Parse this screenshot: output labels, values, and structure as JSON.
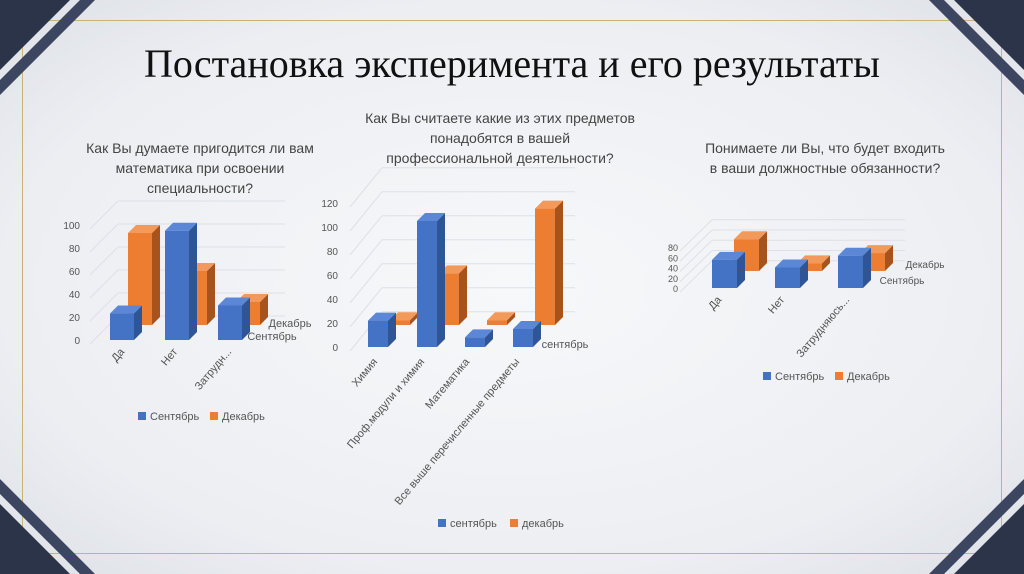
{
  "title": "Постановка эксперимента и его результаты",
  "colors": {
    "september": "#4472c4",
    "december": "#ed7d31",
    "frame": "#2b3448",
    "gold": "#c9b27a"
  },
  "chart_data": [
    {
      "type": "bar",
      "title": "Как Вы думаете пригодится ли вам математика при освоении специальности?",
      "categories": [
        "Да",
        "Нет",
        "Затрудн..."
      ],
      "yticks": [
        "0",
        "20",
        "40",
        "60",
        "80",
        "100"
      ],
      "ylim": [
        0,
        100
      ],
      "series": [
        {
          "name": "Сентябрь",
          "values": [
            23,
            95,
            30
          ]
        },
        {
          "name": "Декабрь",
          "values": [
            80,
            47,
            20
          ]
        }
      ],
      "depth_labels": [
        "Декабрь",
        "Сентябрь"
      ],
      "legend": [
        "Сентябрь",
        "Декабрь"
      ]
    },
    {
      "type": "bar",
      "title": "Как Вы считаете какие из этих предметов понадобятся в вашей профессиональной деятельности?",
      "categories": [
        "Химия",
        "Проф.модули и химия",
        "Математика",
        "Все выше перечисленные предметы"
      ],
      "yticks": [
        "0",
        "20",
        "40",
        "60",
        "80",
        "100",
        "120"
      ],
      "ylim": [
        0,
        120
      ],
      "series": [
        {
          "name": "сентябрь",
          "values": [
            22,
            105,
            8,
            15
          ]
        },
        {
          "name": "декабрь",
          "values": [
            4,
            43,
            4,
            97
          ]
        }
      ],
      "depth_labels": [
        "сентябрь"
      ],
      "legend": [
        "сентябрь",
        "декабрь"
      ]
    },
    {
      "type": "bar",
      "title": "Понимаете ли Вы, что будет входить в ваши должностные обязанности?",
      "categories": [
        "Да",
        "Нет",
        "Затрудняюсь..."
      ],
      "yticks": [
        "0",
        "20",
        "40",
        "60",
        "80"
      ],
      "ylim": [
        0,
        80
      ],
      "series": [
        {
          "name": "Сентябрь",
          "values": [
            55,
            40,
            63
          ]
        },
        {
          "name": "Декабрь",
          "values": [
            62,
            15,
            35
          ]
        }
      ],
      "depth_labels": [
        "Декабрь",
        "Сентябрь"
      ],
      "legend": [
        "Сентябрь",
        "Декабрь"
      ]
    }
  ]
}
